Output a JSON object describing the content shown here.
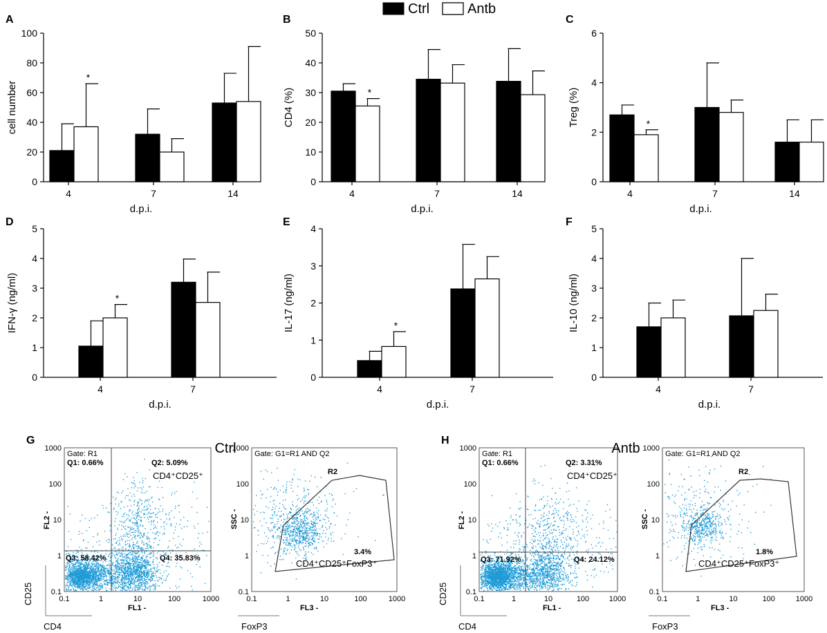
{
  "legend": {
    "items": [
      {
        "label": "Ctrl",
        "color": "#000000"
      },
      {
        "label": "Antb",
        "color": "#ffffff"
      }
    ]
  },
  "chart_data": [
    {
      "panel": "A",
      "type": "bar",
      "categories": [
        "4",
        "7",
        "14"
      ],
      "xlabel": "d.p.i.",
      "ylabel": "cell number",
      "ylim": [
        0,
        100
      ],
      "yticks": [
        0,
        20,
        40,
        60,
        80,
        100
      ],
      "series": [
        {
          "name": "Ctrl",
          "values": [
            21,
            32,
            53
          ],
          "errors": [
            18,
            17,
            20
          ]
        },
        {
          "name": "Antb",
          "values": [
            37,
            20,
            54
          ],
          "errors": [
            29,
            9,
            37
          ]
        }
      ],
      "significance": [
        {
          "category": "4",
          "series": "Antb",
          "mark": "*"
        }
      ]
    },
    {
      "panel": "B",
      "type": "bar",
      "categories": [
        "4",
        "7",
        "14"
      ],
      "xlabel": "d.p.i.",
      "ylabel": "CD4 (%)",
      "ylim": [
        0,
        50
      ],
      "yticks": [
        0,
        10,
        20,
        30,
        40,
        50
      ],
      "series": [
        {
          "name": "Ctrl",
          "values": [
            30.5,
            34.5,
            33.8
          ],
          "errors": [
            2.5,
            10,
            11
          ]
        },
        {
          "name": "Antb",
          "values": [
            25.5,
            33.2,
            29.3
          ],
          "errors": [
            2.5,
            6.2,
            8
          ]
        }
      ],
      "significance": [
        {
          "category": "4",
          "series": "Antb",
          "mark": "*"
        }
      ]
    },
    {
      "panel": "C",
      "type": "bar",
      "categories": [
        "4",
        "7",
        "14"
      ],
      "xlabel": "d.p.i.",
      "ylabel": "Treg (%)",
      "ylim": [
        0,
        6
      ],
      "yticks": [
        0,
        2,
        4,
        6
      ],
      "series": [
        {
          "name": "Ctrl",
          "values": [
            2.7,
            3.0,
            1.6
          ],
          "errors": [
            0.4,
            1.8,
            0.9
          ]
        },
        {
          "name": "Antb",
          "values": [
            1.9,
            2.8,
            1.6
          ],
          "errors": [
            0.2,
            0.5,
            0.9
          ]
        }
      ],
      "significance": [
        {
          "category": "4",
          "series": "Antb",
          "mark": "*"
        }
      ]
    },
    {
      "panel": "D",
      "type": "bar",
      "categories": [
        "4",
        "7"
      ],
      "xlabel": "d.p.i.",
      "ylabel": "IFN-γ (ng/ml)",
      "ylim": [
        0,
        5
      ],
      "yticks": [
        0,
        1,
        2,
        3,
        4,
        5
      ],
      "series": [
        {
          "name": "Ctrl",
          "values": [
            1.05,
            3.2
          ],
          "errors": [
            0.85,
            0.78
          ]
        },
        {
          "name": "Antb",
          "values": [
            2.0,
            2.52
          ],
          "errors": [
            0.45,
            1.02
          ]
        }
      ],
      "significance": [
        {
          "category": "4",
          "series": "Antb",
          "mark": "*"
        }
      ]
    },
    {
      "panel": "E",
      "type": "bar",
      "categories": [
        "4",
        "7"
      ],
      "xlabel": "d.p.i.",
      "ylabel": "IL-17 (ng/ml)",
      "ylim": [
        0,
        4
      ],
      "yticks": [
        0,
        1,
        2,
        3,
        4
      ],
      "series": [
        {
          "name": "Ctrl",
          "values": [
            0.45,
            2.38
          ],
          "errors": [
            0.25,
            1.2
          ]
        },
        {
          "name": "Antb",
          "values": [
            0.83,
            2.65
          ],
          "errors": [
            0.4,
            0.6
          ]
        }
      ],
      "significance": [
        {
          "category": "4",
          "series": "Antb",
          "mark": "*"
        }
      ]
    },
    {
      "panel": "F",
      "type": "bar",
      "categories": [
        "4",
        "7"
      ],
      "xlabel": "d.p.i.",
      "ylabel": "IL-10 (ng/ml)",
      "ylim": [
        0,
        5
      ],
      "yticks": [
        0,
        1,
        2,
        3,
        4,
        5
      ],
      "series": [
        {
          "name": "Ctrl",
          "values": [
            1.7,
            2.07
          ],
          "errors": [
            0.8,
            1.93
          ]
        },
        {
          "name": "Antb",
          "values": [
            2.0,
            2.25
          ],
          "errors": [
            0.6,
            0.55
          ]
        }
      ],
      "significance": []
    }
  ],
  "flow": {
    "groups": [
      {
        "panel": "G",
        "title": "Ctrl",
        "quad": {
          "gate": "Gate: R1",
          "q1": "Q1: 0.66%",
          "q2": "Q2: 5.09%",
          "q3": "Q3: 58.42%",
          "q4": "Q4: 35.83%",
          "pop": "CD4⁺CD25⁺",
          "xaxis": "FL1 -",
          "yaxis": "FL2 -",
          "xlabel": "CD4",
          "ylabel": "CD25"
        },
        "gated": {
          "gate": "Gate: G1=R1 AND Q2",
          "region": "R2",
          "pct": "3.4%",
          "pop": "CD4⁺CD25⁺FoxP3⁺",
          "xaxis": "FL3 -",
          "yaxis": "SSC -",
          "xlabel": "FoxP3"
        }
      },
      {
        "panel": "H",
        "title": "Antb",
        "quad": {
          "gate": "Gate: R1",
          "q1": "Q1: 0.66%",
          "q2": "Q2: 3.31%",
          "q3": "Q3: 71.92%",
          "q4": "Q4: 24.12%",
          "pop": "CD4⁺CD25⁺",
          "xaxis": "FL1 -",
          "yaxis": "FL2 -",
          "xlabel": "CD4",
          "ylabel": "CD25"
        },
        "gated": {
          "gate": "Gate: G1=R1 AND Q2",
          "region": "R2",
          "pct": "1.8%",
          "pop": "CD4⁺CD25⁺FoxP3⁺",
          "xaxis": "FL3 -",
          "yaxis": "SSC -",
          "xlabel": "FoxP3"
        }
      }
    ],
    "log_ticks": [
      "0.1",
      "1",
      "10",
      "100",
      "1000"
    ],
    "dot_color": "#1e9bd7"
  }
}
